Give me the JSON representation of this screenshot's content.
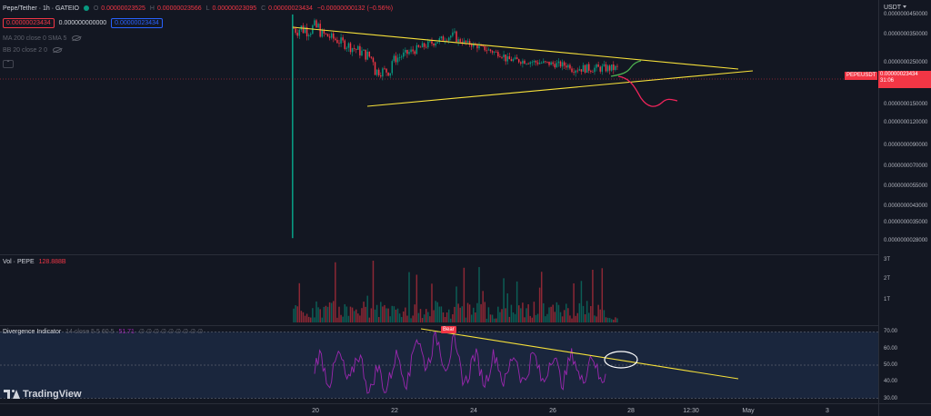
{
  "header": {
    "symbol": "Pepe/Tether · 1h · GATEIO",
    "o_label": "O",
    "o_value": "0.00000023525",
    "h_label": "H",
    "h_value": "0.00000023566",
    "l_label": "L",
    "l_value": "0.00000023095",
    "c_label": "C",
    "c_value": "0.00000023434",
    "change": "−0.00000000132 (−0.56%)",
    "bid": "0.00000023434",
    "spread": "0.000000000000",
    "ask": "0.00000023434"
  },
  "indicators": {
    "ma_label": "MA 200 close 0 SMA 5",
    "bb_label": "BB 20 close 2 0"
  },
  "price_axis": {
    "currency": "USDT",
    "ticks": [
      {
        "label": "0.0000000450000",
        "value": 45
      },
      {
        "label": "0.0000000350000",
        "value": 35
      },
      {
        "label": "0.0000000250000",
        "value": 25
      },
      {
        "label": "0.0000000190000",
        "value": 19
      },
      {
        "label": "0.0000000150000",
        "value": 15
      },
      {
        "label": "0.0000000120000",
        "value": 12
      },
      {
        "label": "0.0000000090000",
        "value": 9
      },
      {
        "label": "0.0000000070000",
        "value": 7
      },
      {
        "label": "0.0000000055000",
        "value": 5.5
      },
      {
        "label": "0.0000000043000",
        "value": 4.3
      },
      {
        "label": "0.0000000035000",
        "value": 3.5
      },
      {
        "label": "0.0000000028000",
        "value": 2.8
      }
    ],
    "current_symbol": "PEPEUSDT",
    "current_price": "0.00000023434",
    "countdown": "31:06"
  },
  "volume": {
    "label": "Vol · PEPE",
    "value": "128.888B",
    "ticks": [
      "3T",
      "2T",
      "1T"
    ]
  },
  "divergence": {
    "label": "Divergence Indicator",
    "params": "14 close 5 5 60 5",
    "value": "51.71",
    "zeros": "∅ ∅ ∅ ∅ ∅ ∅ ∅ ∅ ∅",
    "bear_label": "Bear",
    "ticks": [
      {
        "label": "70.00",
        "value": 70
      },
      {
        "label": "60.00",
        "value": 60
      },
      {
        "label": "50.00",
        "value": 50
      },
      {
        "label": "40.00",
        "value": 40
      },
      {
        "label": "30.00",
        "value": 30
      }
    ]
  },
  "time_axis": {
    "labels": [
      "20",
      "22",
      "24",
      "26",
      "28",
      "12:30",
      "May",
      "3"
    ]
  },
  "logo": {
    "text": "TradingView"
  },
  "colors": {
    "up": "#089981",
    "down": "#f23645",
    "trendline": "#f7e13a",
    "projection_up": "#4caf50",
    "projection_down": "#f0245b",
    "rsi": "#9c27b0",
    "rsi_band": "#1e2d48"
  },
  "chart_data": {
    "type": "candlestick",
    "price_range": [
      2.6,
      47
    ],
    "rsi_range": [
      27,
      73
    ],
    "rsi_band": [
      30,
      70
    ],
    "rsi_mid": 50
  }
}
